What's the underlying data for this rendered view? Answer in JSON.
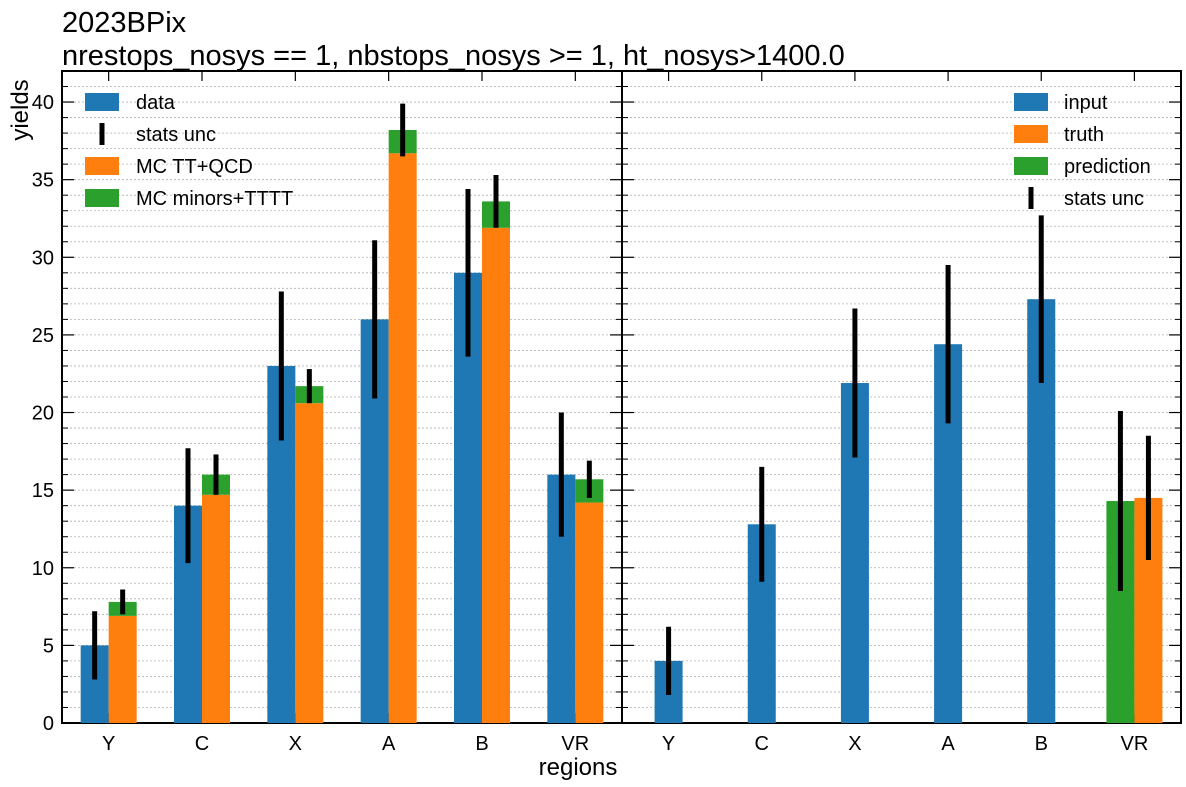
{
  "title": [
    "2023BPix",
    "nrestops_nosys == 1, nbstops_nosys >= 1, ht_nosys>1400.0"
  ],
  "colors": {
    "blue": "#1f77b4",
    "orange": "#ff7f0e",
    "green": "#2ca02c",
    "errorbar": "#000000"
  },
  "chart_data": [
    {
      "type": "bar",
      "panel": "left",
      "categories": [
        "Y",
        "C",
        "X",
        "A",
        "B",
        "VR"
      ],
      "xlabel": "regions",
      "ylabel": "yields",
      "ylim": [
        0,
        42
      ],
      "yticks": [
        0,
        5,
        10,
        15,
        20,
        25,
        30,
        35,
        40
      ],
      "grid": true,
      "legend_position": "top-left",
      "legend": [
        "data",
        "stats unc",
        "MC TT+QCD",
        "MC minors+TTTT"
      ],
      "series": [
        {
          "name": "data",
          "values": [
            5,
            14,
            23,
            26,
            29,
            16
          ],
          "err": [
            2.2,
            3.7,
            4.8,
            5.1,
            5.4,
            4.0
          ]
        },
        {
          "name": "MC TT+QCD",
          "values": [
            6.9,
            14.7,
            20.6,
            36.7,
            31.9,
            14.2
          ]
        },
        {
          "name": "MC minors+TTTT",
          "values": [
            0.9,
            1.3,
            1.1,
            1.5,
            1.7,
            1.5
          ],
          "stacked_total_err": [
            0.8,
            1.3,
            1.1,
            1.7,
            1.7,
            1.2
          ]
        }
      ]
    },
    {
      "type": "bar",
      "panel": "right",
      "categories": [
        "Y",
        "C",
        "X",
        "A",
        "B",
        "VR"
      ],
      "xlabel": "regions",
      "ylim": [
        0,
        42
      ],
      "grid": true,
      "legend_position": "top-right",
      "legend": [
        "input",
        "truth",
        "prediction",
        "stats unc"
      ],
      "series": [
        {
          "name": "input",
          "values": [
            4.0,
            12.8,
            21.9,
            24.4,
            27.3,
            null
          ],
          "err": [
            2.2,
            3.7,
            4.8,
            5.1,
            5.4,
            null
          ]
        },
        {
          "name": "prediction",
          "values": [
            null,
            null,
            null,
            null,
            null,
            14.3
          ],
          "err": [
            null,
            null,
            null,
            null,
            null,
            5.8
          ]
        },
        {
          "name": "truth",
          "values": [
            null,
            null,
            null,
            null,
            null,
            14.5
          ],
          "err": [
            null,
            null,
            null,
            null,
            null,
            4.0
          ]
        }
      ]
    }
  ]
}
